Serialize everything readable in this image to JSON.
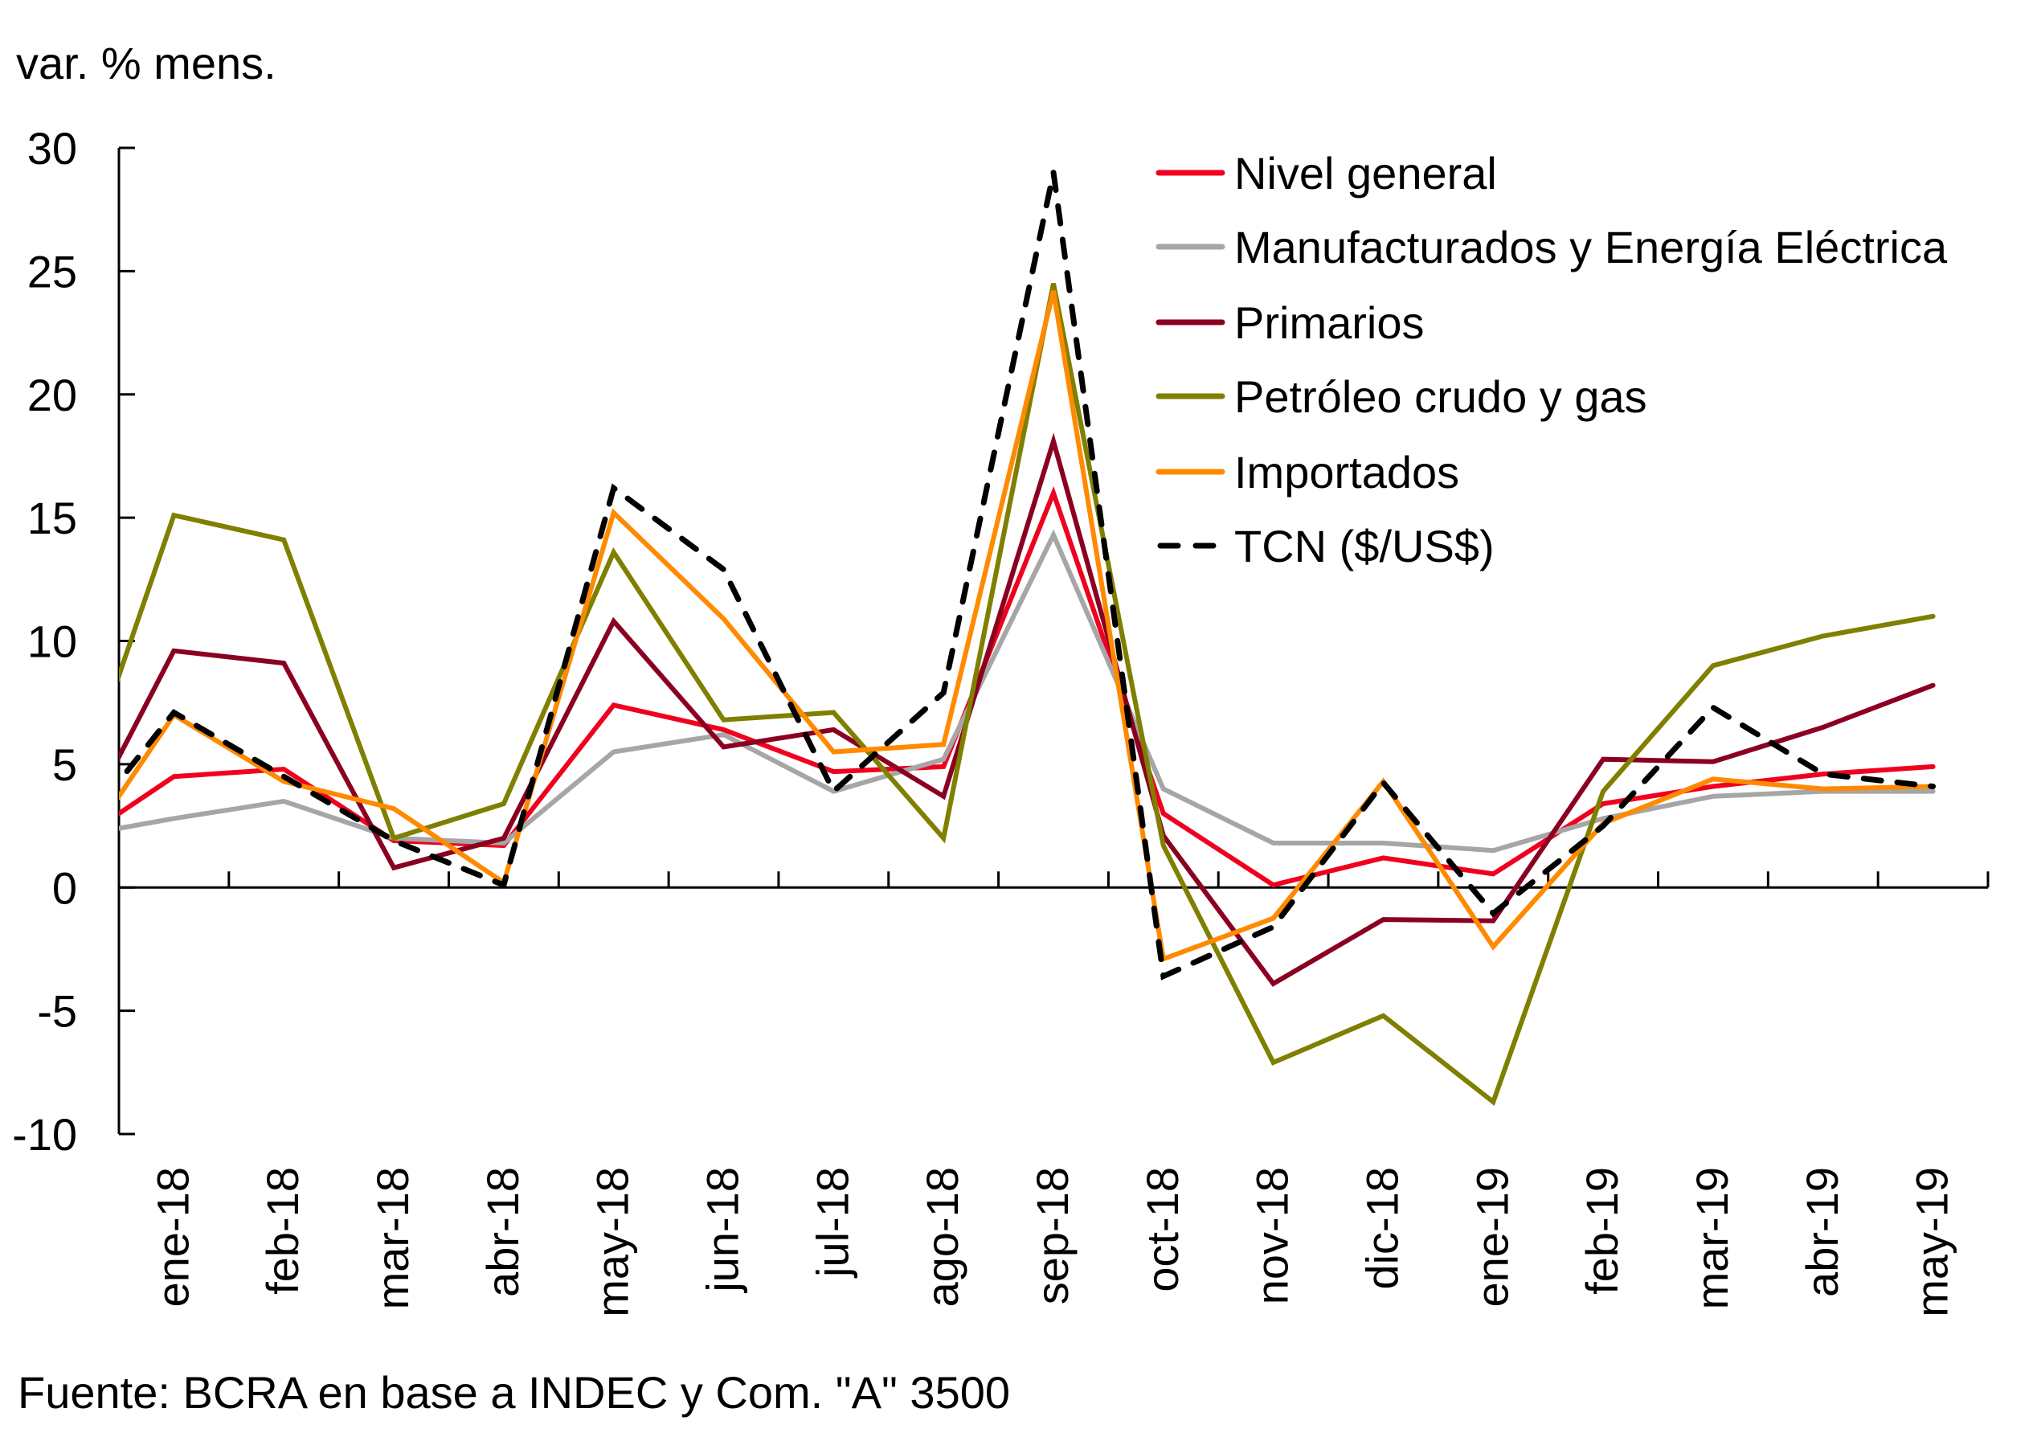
{
  "chart_data": {
    "type": "line",
    "title": "",
    "ylabel": "var. % mens.",
    "xlabel": "",
    "source": "Fuente: BCRA en base a INDEC y Com. \"A\" 3500",
    "ylim": [
      -10,
      30
    ],
    "yticks": [
      30,
      25,
      20,
      15,
      10,
      5,
      0,
      -5,
      -10
    ],
    "ytick_labels": [
      "30",
      "25",
      "20",
      "15",
      "10",
      "5",
      "0",
      "-5",
      "-10"
    ],
    "grid": false,
    "legend_position": "top-right",
    "categories": [
      "ene-18",
      "feb-18",
      "mar-18",
      "abr-18",
      "may-18",
      "jun-18",
      "jul-18",
      "ago-18",
      "sep-18",
      "oct-18",
      "nov-18",
      "dic-18",
      "ene-19",
      "feb-19",
      "mar-19",
      "abr-19",
      "may-19"
    ],
    "left_edge_values_note": "lines enter the plot from the y-axis (prior month dic-17 clipped)",
    "prior_period": "dic-17",
    "series": [
      {
        "name": "Nivel general",
        "color": "#F0001E",
        "dashed": false,
        "prior_value": 1.5,
        "values": [
          4.5,
          4.8,
          1.9,
          1.7,
          7.4,
          6.4,
          4.7,
          4.9,
          16.0,
          3.0,
          0.1,
          1.2,
          0.55,
          3.4,
          4.1,
          4.6,
          4.9
        ]
      },
      {
        "name": "Manufacturados y Energía Eléctrica",
        "color": "#A6A6A6",
        "dashed": false,
        "prior_value": 2.0,
        "values": [
          2.8,
          3.5,
          2.0,
          1.8,
          5.5,
          6.2,
          3.9,
          5.2,
          14.3,
          4.0,
          1.8,
          1.8,
          1.5,
          2.8,
          3.7,
          3.9,
          3.9
        ]
      },
      {
        "name": "Primarios",
        "color": "#8B0021",
        "dashed": false,
        "prior_value": 1.0,
        "values": [
          9.6,
          9.1,
          0.8,
          2.0,
          10.8,
          5.7,
          6.4,
          3.7,
          18.1,
          2.1,
          -3.9,
          -1.3,
          -1.35,
          5.2,
          5.1,
          6.5,
          8.2
        ]
      },
      {
        "name": "Petróleo crudo y gas",
        "color": "#7F7F00",
        "dashed": false,
        "prior_value": 2.1,
        "values": [
          15.1,
          14.1,
          2.0,
          3.4,
          13.6,
          6.8,
          7.1,
          2.0,
          24.5,
          1.7,
          -7.1,
          -5.2,
          -8.7,
          3.9,
          9.0,
          10.2,
          11.0
        ]
      },
      {
        "name": "Importados",
        "color": "#FF8A00",
        "dashed": false,
        "prior_value": 0.4,
        "values": [
          7.0,
          4.3,
          3.2,
          0.2,
          15.2,
          10.9,
          5.5,
          5.8,
          24.2,
          -2.9,
          -1.25,
          4.3,
          -2.4,
          2.6,
          4.4,
          4.0,
          4.1
        ]
      },
      {
        "name": "TCN ($/US$)",
        "color": "#000000",
        "dashed": true,
        "prior_value": 1.5,
        "values": [
          7.1,
          4.5,
          1.9,
          0.1,
          16.2,
          12.9,
          3.9,
          7.9,
          29.0,
          -3.6,
          -1.6,
          4.25,
          -1.05,
          2.5,
          7.3,
          4.6,
          4.1
        ]
      }
    ]
  }
}
